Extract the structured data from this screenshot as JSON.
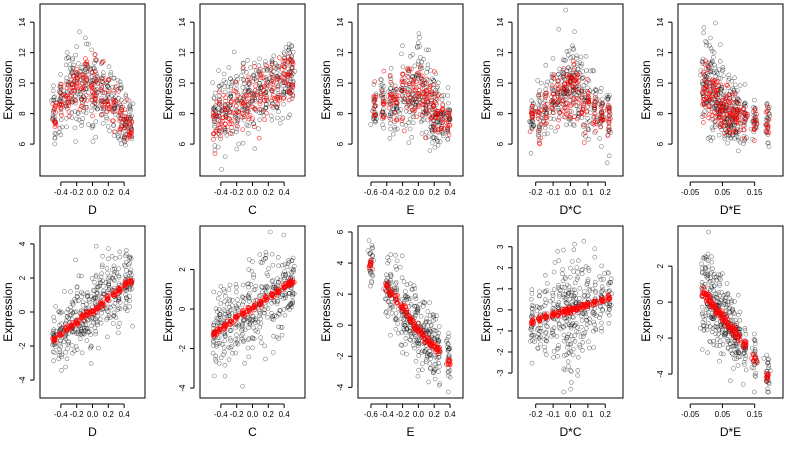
{
  "figure": {
    "ylabel": "Expression",
    "colors": {
      "observed": "#000000",
      "fitted": "#ff0000",
      "axis": "#000000"
    }
  },
  "chart_data": [
    {
      "type": "scatter",
      "xlabel": "D",
      "ylabel": "Expression",
      "xlim": [
        -0.55,
        0.55
      ],
      "ylim": [
        4.3,
        14.8
      ],
      "xticks": [
        -0.4,
        -0.2,
        0.0,
        0.2,
        0.4
      ],
      "xtick_labels": [
        "-0.4",
        "-0.2",
        "0.0",
        "0.2",
        "0.4"
      ],
      "yticks": [
        6,
        8,
        10,
        12,
        14
      ],
      "ytick_labels": [
        "6",
        "8",
        "10",
        "12",
        "14"
      ],
      "x_levels": [
        -0.48,
        -0.4,
        -0.32,
        -0.25,
        -0.2,
        -0.13,
        -0.08,
        0.0,
        0.05,
        0.12,
        0.2,
        0.28,
        0.35,
        0.42,
        0.48
      ],
      "observed": {
        "center": [
          8.0,
          8.6,
          9.0,
          9.4,
          9.8,
          9.9,
          10.0,
          10.1,
          9.7,
          9.3,
          8.9,
          8.5,
          8.0,
          7.6,
          7.3
        ],
        "spread": [
          1.6,
          1.9,
          2.1,
          2.3,
          2.4,
          2.5,
          2.6,
          2.7,
          2.5,
          2.3,
          2.2,
          2.0,
          1.8,
          1.7,
          1.5
        ]
      },
      "fitted": {
        "center": [
          7.9,
          8.6,
          9.1,
          9.5,
          9.8,
          10.0,
          10.0,
          10.0,
          9.6,
          9.2,
          8.9,
          8.3,
          7.8,
          7.4,
          7.0
        ],
        "spread": [
          1.1,
          1.3,
          1.5,
          1.6,
          1.7,
          1.8,
          1.8,
          1.7,
          1.7,
          1.6,
          1.5,
          1.3,
          1.2,
          1.1,
          1.0
        ]
      }
    },
    {
      "type": "scatter",
      "xlabel": "C",
      "ylabel": "Expression",
      "xlim": [
        -0.55,
        0.55
      ],
      "ylim": [
        4.3,
        14.8
      ],
      "xticks": [
        -0.4,
        -0.2,
        0.0,
        0.2,
        0.4
      ],
      "xtick_labels": [
        "-0.4",
        "-0.2",
        "0.0",
        "0.2",
        "0.4"
      ],
      "yticks": [
        6,
        8,
        10,
        12,
        14
      ],
      "ytick_labels": [
        "6",
        "8",
        "10",
        "12",
        "14"
      ],
      "x_levels": [
        -0.48,
        -0.42,
        -0.35,
        -0.28,
        -0.2,
        -0.12,
        -0.05,
        0.02,
        0.1,
        0.17,
        0.25,
        0.32,
        0.4,
        0.46,
        0.5
      ],
      "observed": {
        "center": [
          7.5,
          7.8,
          8.1,
          8.3,
          8.5,
          8.8,
          9.0,
          9.2,
          9.4,
          9.6,
          9.8,
          10.0,
          10.3,
          10.5,
          10.7
        ],
        "spread": [
          2.0,
          2.1,
          2.1,
          2.2,
          2.2,
          2.2,
          2.3,
          2.3,
          2.3,
          2.3,
          2.3,
          2.3,
          2.4,
          2.4,
          2.4
        ]
      },
      "fitted": {
        "center": [
          7.3,
          7.6,
          7.9,
          8.1,
          8.3,
          8.6,
          8.9,
          9.1,
          9.3,
          9.5,
          9.7,
          9.9,
          10.1,
          10.3,
          10.4
        ],
        "spread": [
          1.6,
          1.6,
          1.6,
          1.6,
          1.6,
          1.6,
          1.6,
          1.6,
          1.6,
          1.6,
          1.6,
          1.6,
          1.6,
          1.6,
          1.6
        ]
      }
    },
    {
      "type": "scatter",
      "xlabel": "E",
      "ylabel": "Expression",
      "xlim": [
        -0.65,
        0.45
      ],
      "ylim": [
        4.3,
        14.8
      ],
      "xticks": [
        -0.6,
        -0.4,
        -0.2,
        0.0,
        0.2,
        0.4
      ],
      "xtick_labels": [
        "-0.6",
        "-0.4",
        "-0.2",
        "0.0",
        "0.2",
        "0.4"
      ],
      "yticks": [
        6,
        8,
        10,
        12,
        14
      ],
      "ytick_labels": [
        "6",
        "8",
        "10",
        "12",
        "14"
      ],
      "x_levels": [
        -0.55,
        -0.45,
        -0.35,
        -0.28,
        -0.2,
        -0.12,
        -0.06,
        0.0,
        0.05,
        0.1,
        0.16,
        0.2,
        0.24,
        0.3,
        0.38
      ],
      "observed": {
        "center": [
          8.6,
          8.7,
          8.8,
          8.9,
          9.0,
          9.3,
          9.6,
          9.8,
          9.4,
          9.0,
          8.6,
          8.3,
          8.0,
          7.8,
          7.6
        ],
        "spread": [
          1.6,
          1.7,
          1.8,
          1.9,
          2.0,
          2.1,
          2.3,
          2.5,
          2.5,
          2.4,
          2.3,
          2.2,
          2.1,
          1.9,
          1.7
        ]
      },
      "fitted": {
        "center": [
          8.5,
          8.6,
          8.7,
          8.8,
          9.0,
          9.2,
          9.5,
          9.7,
          9.3,
          8.8,
          8.5,
          8.2,
          7.9,
          7.7,
          7.5
        ],
        "spread": [
          1.3,
          1.3,
          1.4,
          1.4,
          1.5,
          1.6,
          1.7,
          1.8,
          1.8,
          1.7,
          1.6,
          1.5,
          1.4,
          1.3,
          1.2
        ]
      }
    },
    {
      "type": "scatter",
      "xlabel": "D*C",
      "ylabel": "Expression",
      "xlim": [
        -0.25,
        0.25
      ],
      "ylim": [
        4.3,
        14.8
      ],
      "xticks": [
        -0.2,
        -0.1,
        0.0,
        0.1,
        0.2
      ],
      "xtick_labels": [
        "-0.2",
        "-0.1",
        "0.0",
        "0.1",
        "0.2"
      ],
      "yticks": [
        6,
        8,
        10,
        12,
        14
      ],
      "ytick_labels": [
        "6",
        "8",
        "10",
        "12",
        "14"
      ],
      "x_levels": [
        -0.22,
        -0.18,
        -0.14,
        -0.1,
        -0.07,
        -0.04,
        -0.02,
        0.0,
        0.02,
        0.04,
        0.07,
        0.1,
        0.14,
        0.18,
        0.22
      ],
      "observed": {
        "center": [
          7.8,
          8.1,
          8.5,
          8.9,
          9.3,
          9.6,
          9.8,
          9.9,
          9.8,
          9.6,
          9.3,
          8.9,
          8.5,
          8.1,
          7.8
        ],
        "spread": [
          1.6,
          1.8,
          2.0,
          2.2,
          2.3,
          2.5,
          2.6,
          2.7,
          2.6,
          2.5,
          2.3,
          2.2,
          2.0,
          1.8,
          1.6
        ]
      },
      "fitted": {
        "center": [
          7.5,
          7.8,
          8.2,
          8.6,
          9.0,
          9.4,
          9.6,
          9.7,
          9.5,
          9.3,
          9.0,
          8.7,
          8.3,
          8.0,
          7.7
        ],
        "spread": [
          1.4,
          1.5,
          1.6,
          1.7,
          1.8,
          1.9,
          2.0,
          2.0,
          1.9,
          1.8,
          1.7,
          1.6,
          1.5,
          1.4,
          1.3
        ]
      }
    },
    {
      "type": "scatter",
      "xlabel": "D*E",
      "ylabel": "Expression",
      "xlim": [
        -0.06,
        0.21
      ],
      "ylim": [
        4.3,
        14.8
      ],
      "xticks": [
        -0.05,
        0.05,
        0.15
      ],
      "xtick_labels": [
        "-0.05",
        "0.05",
        "0.15"
      ],
      "yticks": [
        6,
        8,
        10,
        12,
        14
      ],
      "ytick_labels": [
        "6",
        "8",
        "10",
        "12",
        "14"
      ],
      "x_levels": [
        -0.01,
        0.0,
        0.01,
        0.02,
        0.03,
        0.04,
        0.05,
        0.06,
        0.07,
        0.08,
        0.09,
        0.1,
        0.12,
        0.15,
        0.19
      ],
      "observed": {
        "center": [
          9.7,
          9.8,
          9.6,
          9.3,
          9.0,
          8.8,
          8.6,
          8.4,
          8.2,
          8.0,
          7.8,
          7.7,
          7.6,
          7.5,
          7.4
        ],
        "spread": [
          2.6,
          2.7,
          2.6,
          2.5,
          2.3,
          2.2,
          2.1,
          2.0,
          1.9,
          1.8,
          1.7,
          1.6,
          1.5,
          1.3,
          1.2
        ]
      },
      "fitted": {
        "center": [
          9.6,
          9.7,
          9.5,
          9.2,
          8.9,
          8.7,
          8.5,
          8.3,
          8.1,
          7.9,
          7.7,
          7.6,
          7.5,
          7.4,
          7.3
        ],
        "spread": [
          1.8,
          1.9,
          1.8,
          1.7,
          1.6,
          1.5,
          1.4,
          1.3,
          1.3,
          1.2,
          1.1,
          1.0,
          1.0,
          0.9,
          0.8
        ]
      }
    },
    {
      "type": "scatter",
      "xlabel": "D",
      "ylabel": "Expression",
      "xlim": [
        -0.55,
        0.55
      ],
      "ylim": [
        -4.7,
        4.7
      ],
      "xticks": [
        -0.4,
        -0.2,
        0.0,
        0.2,
        0.4
      ],
      "xtick_labels": [
        "-0.4",
        "-0.2",
        "0.0",
        "0.2",
        "0.4"
      ],
      "yticks": [
        -4,
        -2,
        0,
        2,
        4
      ],
      "ytick_labels": [
        "-4",
        "-2",
        "0",
        "2",
        "4"
      ],
      "x_levels": [
        -0.48,
        -0.4,
        -0.33,
        -0.26,
        -0.2,
        -0.13,
        -0.07,
        0.0,
        0.06,
        0.12,
        0.2,
        0.27,
        0.34,
        0.42,
        0.48
      ],
      "observed": {
        "center": [
          -1.6,
          -1.3,
          -1.0,
          -0.8,
          -0.5,
          -0.3,
          0.0,
          0.0,
          0.3,
          0.6,
          0.8,
          1.1,
          1.3,
          1.6,
          1.9
        ],
        "spread": [
          1.6,
          1.7,
          1.8,
          1.9,
          2.0,
          2.0,
          2.1,
          2.1,
          2.1,
          2.0,
          2.0,
          1.9,
          1.8,
          1.7,
          1.6
        ]
      },
      "fitted": {
        "center": [
          -1.6,
          -1.3,
          -1.0,
          -0.8,
          -0.6,
          -0.3,
          -0.1,
          0.0,
          0.2,
          0.5,
          0.8,
          1.0,
          1.3,
          1.6,
          1.8
        ],
        "spread": [
          0.15,
          0.15,
          0.15,
          0.15,
          0.15,
          0.15,
          0.15,
          0.15,
          0.15,
          0.15,
          0.15,
          0.15,
          0.15,
          0.15,
          0.15
        ]
      }
    },
    {
      "type": "scatter",
      "xlabel": "C",
      "ylabel": "Expression",
      "xlim": [
        -0.55,
        0.55
      ],
      "ylim": [
        -4.2,
        3.9
      ],
      "xticks": [
        -0.4,
        -0.2,
        0.0,
        0.2,
        0.4
      ],
      "xtick_labels": [
        "-0.4",
        "-0.2",
        "0.0",
        "0.2",
        "0.4"
      ],
      "yticks": [
        -4,
        -2,
        0,
        2
      ],
      "ytick_labels": [
        "-4",
        "-2",
        "0",
        "2"
      ],
      "x_levels": [
        -0.48,
        -0.42,
        -0.35,
        -0.28,
        -0.2,
        -0.12,
        -0.05,
        0.02,
        0.1,
        0.17,
        0.25,
        0.32,
        0.4,
        0.46,
        0.5
      ],
      "observed": {
        "center": [
          -1.2,
          -1.0,
          -0.9,
          -0.7,
          -0.5,
          -0.3,
          -0.1,
          0.0,
          0.2,
          0.4,
          0.6,
          0.8,
          1.0,
          1.2,
          1.4
        ],
        "spread": [
          1.6,
          1.7,
          1.8,
          1.8,
          1.9,
          1.9,
          2.0,
          2.0,
          2.0,
          2.0,
          1.9,
          1.9,
          1.8,
          1.8,
          1.7
        ]
      },
      "fitted": {
        "center": [
          -1.25,
          -1.05,
          -0.85,
          -0.65,
          -0.45,
          -0.25,
          -0.05,
          0.1,
          0.3,
          0.5,
          0.7,
          0.9,
          1.1,
          1.25,
          1.35
        ],
        "spread": [
          0.15,
          0.15,
          0.15,
          0.15,
          0.15,
          0.15,
          0.15,
          0.15,
          0.15,
          0.15,
          0.15,
          0.15,
          0.15,
          0.15,
          0.15
        ]
      }
    },
    {
      "type": "scatter",
      "xlabel": "E",
      "ylabel": "Expression",
      "xlim": [
        -0.65,
        0.45
      ],
      "ylim": [
        -4.3,
        6.0
      ],
      "xticks": [
        -0.6,
        -0.4,
        -0.2,
        0.0,
        0.2,
        0.4
      ],
      "xtick_labels": [
        "-0.6",
        "-0.4",
        "-0.2",
        "0.0",
        "0.2",
        "0.4"
      ],
      "yticks": [
        -4,
        -2,
        0,
        2,
        4,
        6
      ],
      "ytick_labels": [
        "-4",
        "-2",
        "0",
        "2",
        "4",
        "6"
      ],
      "x_levels": [
        -0.6,
        -0.4,
        -0.35,
        -0.28,
        -0.2,
        -0.15,
        -0.1,
        -0.05,
        0.0,
        0.05,
        0.1,
        0.15,
        0.2,
        0.25,
        0.38
      ],
      "observed": {
        "center": [
          3.8,
          2.5,
          2.0,
          1.6,
          1.2,
          0.8,
          0.4,
          0.2,
          -0.2,
          -0.5,
          -0.8,
          -1.0,
          -1.2,
          -1.4,
          -2.0
        ],
        "spread": [
          1.6,
          1.8,
          1.8,
          1.9,
          2.0,
          2.0,
          2.1,
          2.1,
          2.1,
          2.0,
          2.0,
          1.9,
          1.9,
          1.8,
          1.6
        ]
      },
      "fitted": {
        "center": [
          3.9,
          2.5,
          2.1,
          1.7,
          1.2,
          0.8,
          0.4,
          0.1,
          -0.3,
          -0.6,
          -0.9,
          -1.1,
          -1.4,
          -1.6,
          -2.4
        ],
        "spread": [
          0.25,
          0.25,
          0.25,
          0.25,
          0.25,
          0.25,
          0.25,
          0.25,
          0.25,
          0.25,
          0.25,
          0.25,
          0.25,
          0.25,
          0.25
        ]
      }
    },
    {
      "type": "scatter",
      "xlabel": "D*C",
      "ylabel": "Expression",
      "xlim": [
        -0.25,
        0.25
      ],
      "ylim": [
        -3.9,
        3.7
      ],
      "xticks": [
        -0.2,
        -0.1,
        0.0,
        0.1,
        0.2
      ],
      "xtick_labels": [
        "-0.2",
        "-0.1",
        "0.0",
        "0.1",
        "0.2"
      ],
      "yticks": [
        -3,
        -2,
        -1,
        0,
        1,
        2,
        3
      ],
      "ytick_labels": [
        "-3",
        "-2",
        "-1",
        "0",
        "1",
        "2",
        "3"
      ],
      "x_levels": [
        -0.22,
        -0.18,
        -0.14,
        -0.1,
        -0.07,
        -0.04,
        -0.02,
        0.0,
        0.02,
        0.04,
        0.07,
        0.1,
        0.14,
        0.18,
        0.22
      ],
      "observed": {
        "center": [
          -0.6,
          -0.5,
          -0.4,
          -0.3,
          -0.2,
          -0.1,
          0.0,
          0.0,
          0.0,
          0.1,
          0.2,
          0.3,
          0.3,
          0.4,
          0.5
        ],
        "spread": [
          1.4,
          1.6,
          1.8,
          2.0,
          2.2,
          2.4,
          2.6,
          2.8,
          2.6,
          2.4,
          2.2,
          2.0,
          1.8,
          1.6,
          1.4
        ]
      },
      "fitted": {
        "center": [
          -0.55,
          -0.45,
          -0.35,
          -0.25,
          -0.18,
          -0.1,
          -0.05,
          0.0,
          0.05,
          0.1,
          0.18,
          0.25,
          0.35,
          0.45,
          0.55
        ],
        "spread": [
          0.12,
          0.12,
          0.12,
          0.12,
          0.12,
          0.12,
          0.12,
          0.12,
          0.12,
          0.12,
          0.12,
          0.12,
          0.12,
          0.12,
          0.12
        ]
      }
    },
    {
      "type": "scatter",
      "xlabel": "D*E",
      "ylabel": "Expression",
      "xlim": [
        -0.06,
        0.21
      ],
      "ylim": [
        -5.0,
        3.9
      ],
      "xticks": [
        -0.05,
        0.05,
        0.15
      ],
      "xtick_labels": [
        "-0.05",
        "0.05",
        "0.15"
      ],
      "yticks": [
        -4,
        -2,
        0,
        2
      ],
      "ytick_labels": [
        "-4",
        "-2",
        "0",
        "2"
      ],
      "x_levels": [
        -0.01,
        0.0,
        0.01,
        0.02,
        0.03,
        0.04,
        0.05,
        0.06,
        0.07,
        0.08,
        0.09,
        0.1,
        0.12,
        0.15,
        0.19
      ],
      "observed": {
        "center": [
          0.8,
          0.5,
          0.2,
          -0.1,
          -0.3,
          -0.6,
          -0.8,
          -1.0,
          -1.2,
          -1.4,
          -1.6,
          -1.9,
          -2.4,
          -3.1,
          -3.9
        ],
        "spread": [
          2.6,
          2.7,
          2.6,
          2.4,
          2.3,
          2.2,
          2.0,
          1.9,
          1.8,
          1.7,
          1.6,
          1.5,
          1.4,
          1.2,
          1.0
        ]
      },
      "fitted": {
        "center": [
          0.5,
          0.3,
          0.1,
          -0.2,
          -0.4,
          -0.6,
          -0.8,
          -1.1,
          -1.3,
          -1.5,
          -1.7,
          -1.9,
          -2.3,
          -3.1,
          -4.2
        ],
        "spread": [
          0.25,
          0.25,
          0.25,
          0.25,
          0.25,
          0.25,
          0.25,
          0.25,
          0.25,
          0.25,
          0.25,
          0.25,
          0.25,
          0.25,
          0.25
        ]
      }
    }
  ]
}
